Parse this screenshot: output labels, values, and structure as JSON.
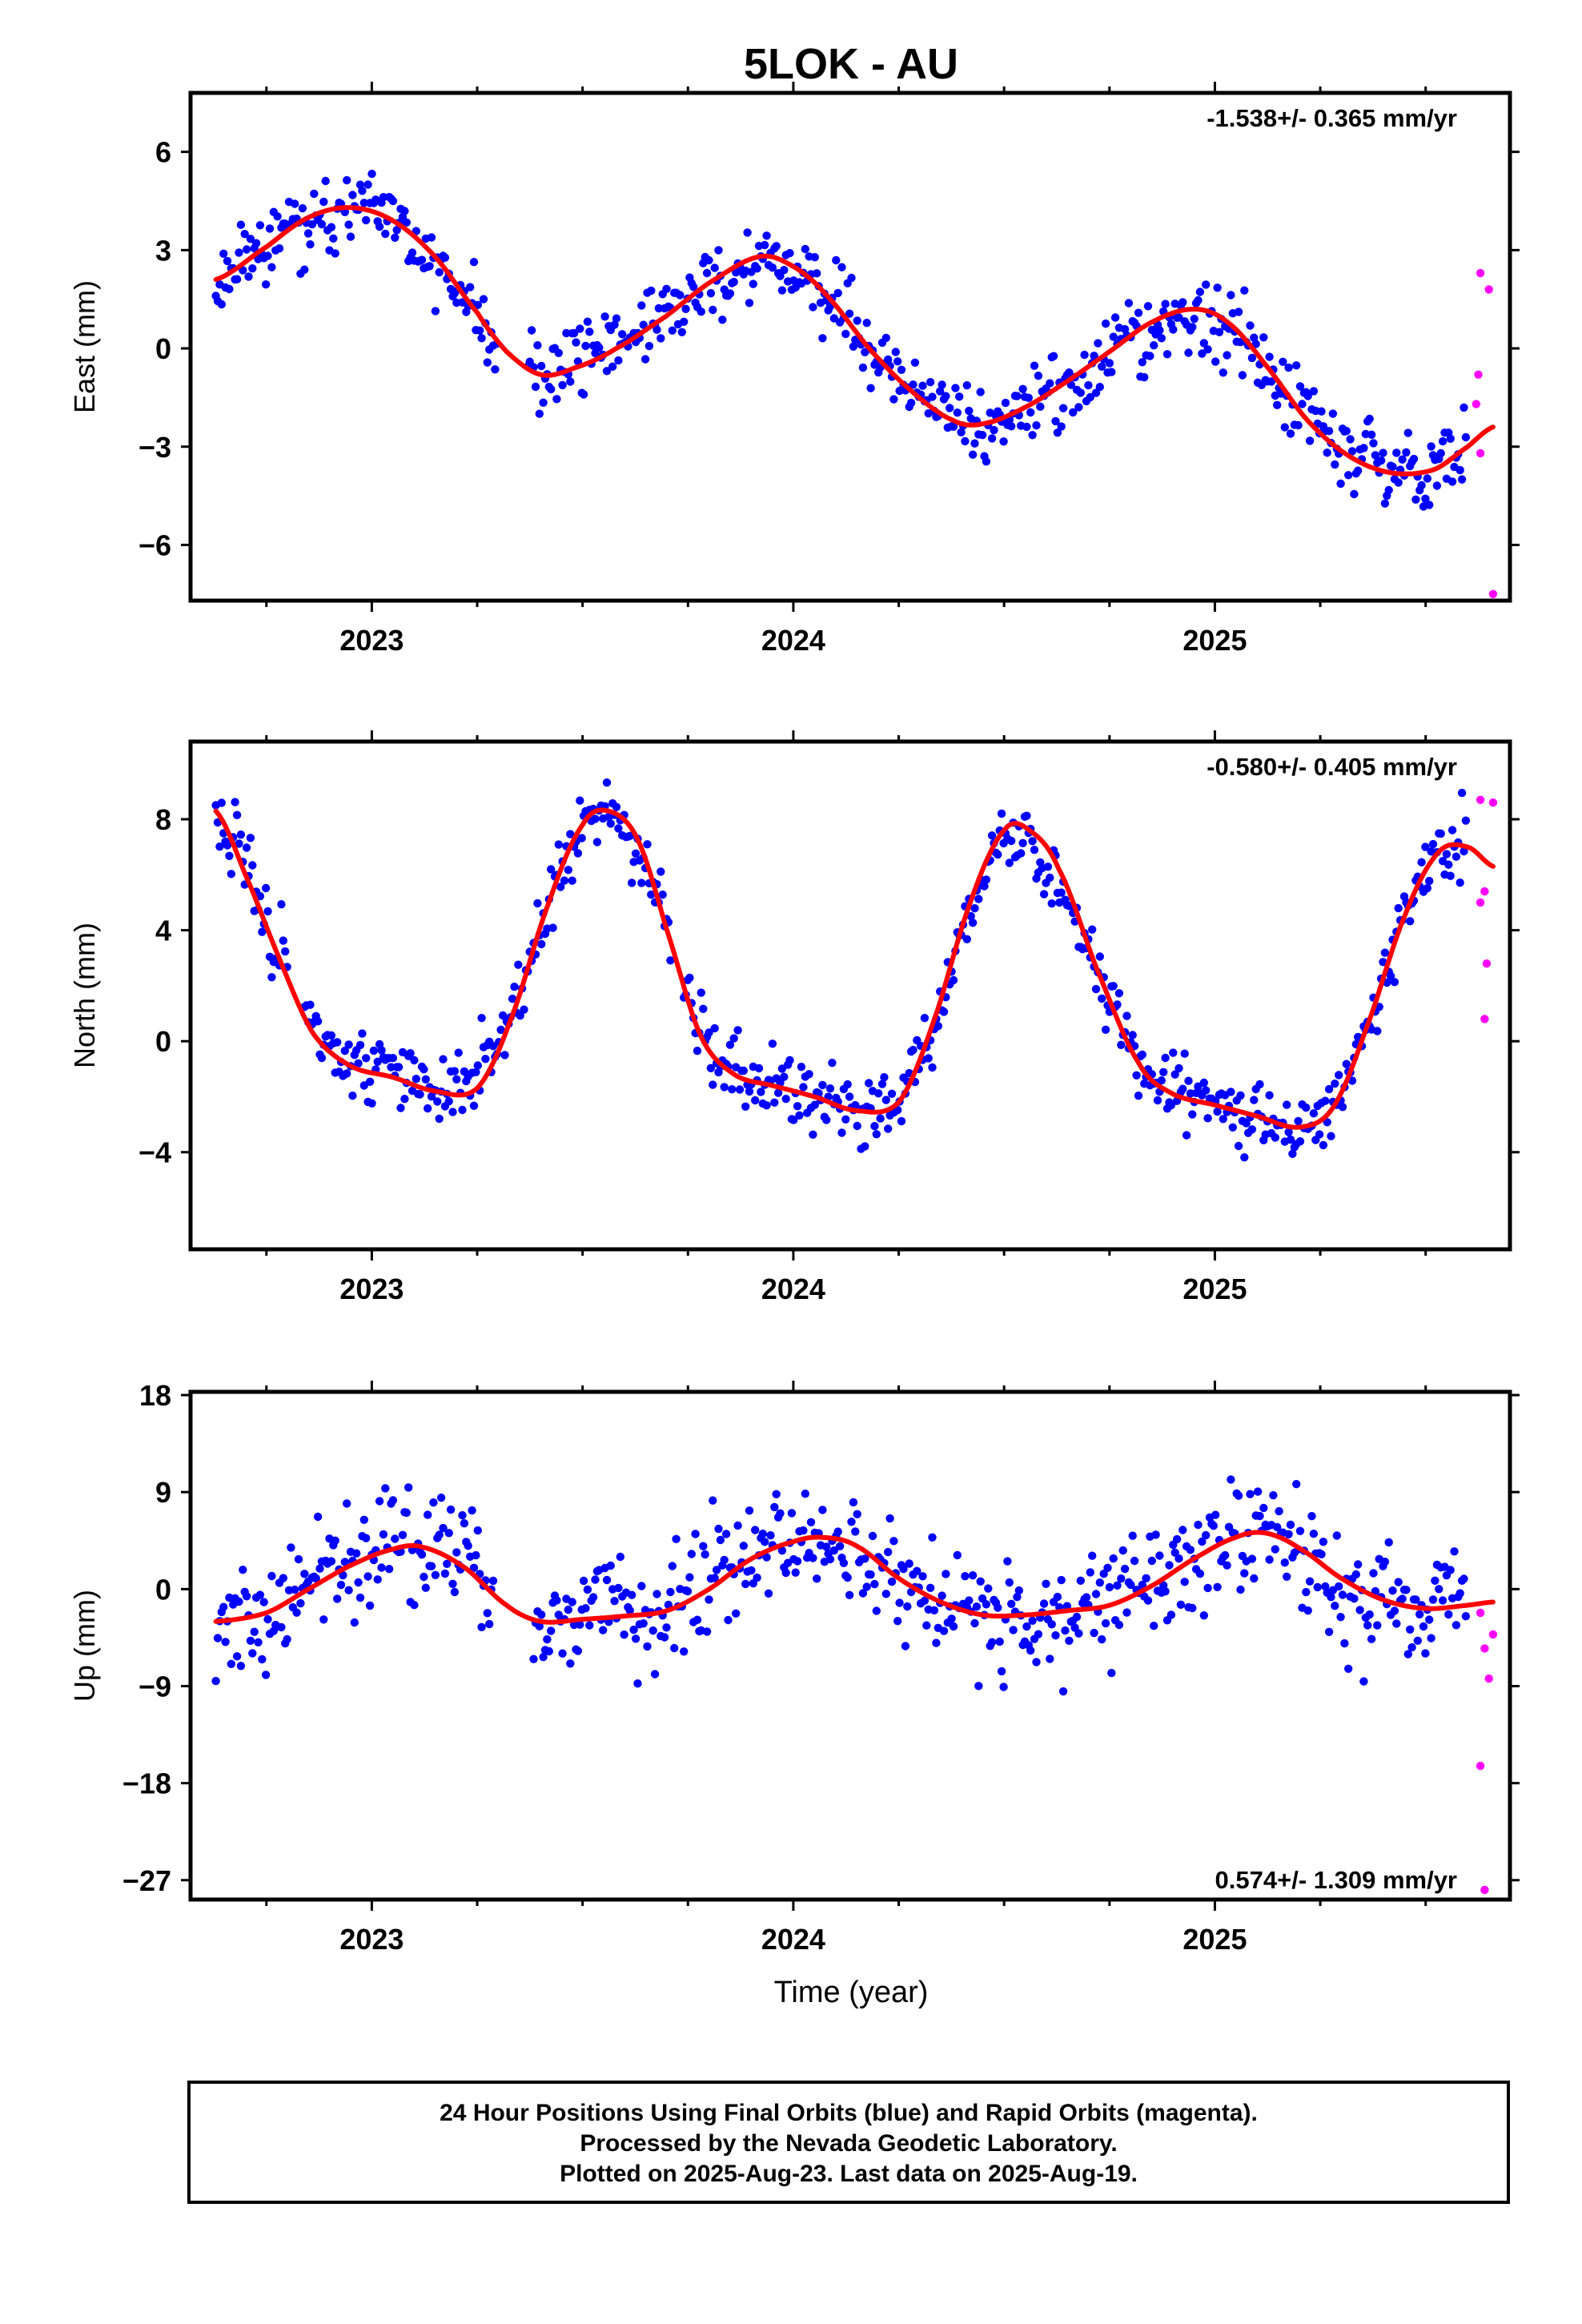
{
  "title": "5LOK - AU",
  "xlabel": "Time (year)",
  "footer": [
    "24 Hour Positions Using Final Orbits (blue) and Rapid Orbits (magenta).",
    "Processed by the Nevada Geodetic Laboratory.",
    "Plotted on 2025-Aug-23. Last data on 2025-Aug-19."
  ],
  "colors": {
    "final": "#0000ff",
    "rapid": "#ff00ff",
    "model": "#ff0000",
    "frame": "#000000"
  },
  "chart_data": [
    {
      "type": "scatter",
      "ylabel": "East (mm)",
      "rate_label": "-1.538+/- 0.365 mm/yr",
      "xlim": [
        2022.57,
        2025.7
      ],
      "ylim": [
        -7.7,
        7.8
      ],
      "yticks": [
        -6,
        -3,
        0,
        3,
        6
      ],
      "xticks": [
        2023,
        2024,
        2025
      ],
      "model": [
        [
          2022.63,
          2.1
        ],
        [
          2022.75,
          3.1
        ],
        [
          2022.85,
          4.0
        ],
        [
          2022.95,
          4.3
        ],
        [
          2023.05,
          3.9
        ],
        [
          2023.15,
          2.8
        ],
        [
          2023.25,
          1.1
        ],
        [
          2023.32,
          -0.1
        ],
        [
          2023.4,
          -0.8
        ],
        [
          2023.48,
          -0.6
        ],
        [
          2023.58,
          0.0
        ],
        [
          2023.7,
          1.0
        ],
        [
          2023.8,
          2.0
        ],
        [
          2023.92,
          2.8
        ],
        [
          2024.0,
          2.5
        ],
        [
          2024.08,
          1.6
        ],
        [
          2024.18,
          0.0
        ],
        [
          2024.28,
          -1.3
        ],
        [
          2024.38,
          -2.2
        ],
        [
          2024.45,
          -2.3
        ],
        [
          2024.55,
          -1.8
        ],
        [
          2024.65,
          -1.0
        ],
        [
          2024.75,
          -0.1
        ],
        [
          2024.85,
          0.8
        ],
        [
          2024.95,
          1.2
        ],
        [
          2025.03,
          0.8
        ],
        [
          2025.12,
          -0.5
        ],
        [
          2025.22,
          -2.2
        ],
        [
          2025.32,
          -3.3
        ],
        [
          2025.42,
          -3.8
        ],
        [
          2025.52,
          -3.7
        ],
        [
          2025.6,
          -3.0
        ],
        [
          2025.66,
          -2.4
        ]
      ],
      "final_series": {
        "start": 2022.63,
        "end": 2025.6,
        "n": 650,
        "scatter": 0.9,
        "jump": 0.04,
        "gaps": [
          [
            2023.3,
            2023.37
          ]
        ],
        "seed": 11
      },
      "rapid": [
        [
          2025.63,
          2.3
        ],
        [
          2025.65,
          1.8
        ],
        [
          2025.625,
          -0.8
        ],
        [
          2025.62,
          -1.7
        ],
        [
          2025.63,
          -3.2
        ],
        [
          2025.66,
          -7.5
        ]
      ]
    },
    {
      "type": "scatter",
      "ylabel": "North (mm)",
      "rate_label": "-0.580+/- 0.405 mm/yr",
      "xlim": [
        2022.57,
        2025.7
      ],
      "ylim": [
        -7.5,
        10.8
      ],
      "yticks": [
        -4,
        0,
        4,
        8
      ],
      "xticks": [
        2023,
        2024,
        2025
      ],
      "model": [
        [
          2022.63,
          8.3
        ],
        [
          2022.7,
          6.0
        ],
        [
          2022.78,
          3.0
        ],
        [
          2022.86,
          0.3
        ],
        [
          2022.95,
          -0.9
        ],
        [
          2023.05,
          -1.3
        ],
        [
          2023.15,
          -1.8
        ],
        [
          2023.25,
          -1.7
        ],
        [
          2023.33,
          0.8
        ],
        [
          2023.42,
          5.0
        ],
        [
          2023.5,
          7.8
        ],
        [
          2023.56,
          8.3
        ],
        [
          2023.63,
          7.3
        ],
        [
          2023.7,
          4.0
        ],
        [
          2023.78,
          0.2
        ],
        [
          2023.86,
          -1.2
        ],
        [
          2023.95,
          -1.6
        ],
        [
          2024.05,
          -2.0
        ],
        [
          2024.15,
          -2.5
        ],
        [
          2024.25,
          -2.2
        ],
        [
          2024.33,
          0.6
        ],
        [
          2024.42,
          5.0
        ],
        [
          2024.5,
          7.6
        ],
        [
          2024.56,
          7.6
        ],
        [
          2024.63,
          6.2
        ],
        [
          2024.72,
          2.6
        ],
        [
          2024.82,
          -0.8
        ],
        [
          2024.9,
          -1.9
        ],
        [
          2025.0,
          -2.3
        ],
        [
          2025.1,
          -2.7
        ],
        [
          2025.2,
          -3.1
        ],
        [
          2025.28,
          -2.4
        ],
        [
          2025.36,
          0.5
        ],
        [
          2025.45,
          4.5
        ],
        [
          2025.53,
          6.8
        ],
        [
          2025.6,
          7.0
        ],
        [
          2025.66,
          6.3
        ]
      ],
      "final_series": {
        "start": 2022.63,
        "end": 2025.6,
        "n": 650,
        "scatter": 1.0,
        "jump": 0.03,
        "gaps": [
          [
            2023.71,
            2023.74
          ],
          [
            2022.8,
            2022.84
          ]
        ],
        "seed": 23
      },
      "rapid": [
        [
          2025.63,
          8.7
        ],
        [
          2025.66,
          8.6
        ],
        [
          2025.64,
          5.4
        ],
        [
          2025.63,
          5.0
        ],
        [
          2025.645,
          2.8
        ],
        [
          2025.64,
          0.8
        ]
      ]
    },
    {
      "type": "scatter",
      "ylabel": "Up (mm)",
      "rate_label": "0.574+/- 1.309 mm/yr",
      "xlim": [
        2022.57,
        2025.7
      ],
      "ylim": [
        -28.8,
        18.3
      ],
      "yticks": [
        -27,
        -18,
        -9,
        0,
        9,
        18
      ],
      "xticks": [
        2023,
        2024,
        2025
      ],
      "model": [
        [
          2022.63,
          -3.0
        ],
        [
          2022.75,
          -2.2
        ],
        [
          2022.85,
          0.0
        ],
        [
          2022.95,
          2.2
        ],
        [
          2023.05,
          3.7
        ],
        [
          2023.12,
          3.9
        ],
        [
          2023.22,
          2.0
        ],
        [
          2023.32,
          -1.5
        ],
        [
          2023.4,
          -3.0
        ],
        [
          2023.5,
          -2.8
        ],
        [
          2023.6,
          -2.5
        ],
        [
          2023.7,
          -2.0
        ],
        [
          2023.8,
          0.0
        ],
        [
          2023.9,
          2.8
        ],
        [
          2024.0,
          4.4
        ],
        [
          2024.07,
          4.8
        ],
        [
          2024.15,
          4.0
        ],
        [
          2024.25,
          1.0
        ],
        [
          2024.35,
          -1.2
        ],
        [
          2024.45,
          -2.4
        ],
        [
          2024.55,
          -2.4
        ],
        [
          2024.65,
          -2.0
        ],
        [
          2024.75,
          -1.5
        ],
        [
          2024.85,
          0.3
        ],
        [
          2024.95,
          2.8
        ],
        [
          2025.05,
          4.8
        ],
        [
          2025.12,
          5.2
        ],
        [
          2025.2,
          3.8
        ],
        [
          2025.3,
          1.0
        ],
        [
          2025.4,
          -1.0
        ],
        [
          2025.5,
          -1.8
        ],
        [
          2025.6,
          -1.5
        ],
        [
          2025.66,
          -1.2
        ]
      ],
      "final_series": {
        "start": 2022.63,
        "end": 2025.6,
        "n": 650,
        "scatter": 4.2,
        "jump": 0.05,
        "gaps": [
          [
            2023.29,
            2023.38
          ]
        ],
        "seed": 37
      },
      "rapid": [
        [
          2025.63,
          -2.2
        ],
        [
          2025.66,
          -4.2
        ],
        [
          2025.64,
          -5.5
        ],
        [
          2025.65,
          -8.3
        ],
        [
          2025.63,
          -16.4
        ],
        [
          2025.64,
          -27.9
        ]
      ]
    }
  ]
}
